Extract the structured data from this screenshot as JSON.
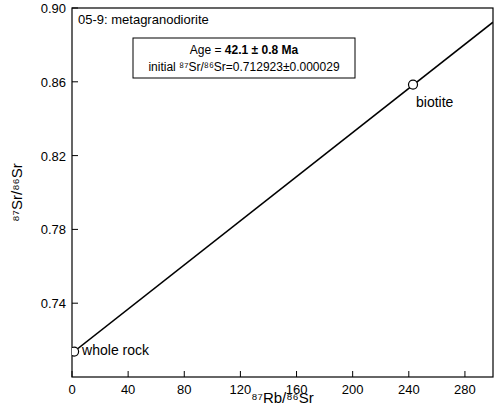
{
  "chart_data": {
    "type": "scatter",
    "title": "05-9: metagranodiorite",
    "x_label": "⁸⁷Rb/⁸⁶Sr",
    "y_label": "⁸⁷Sr/⁸⁶Sr",
    "annotations": [
      "Age = 42.1 ± 0.8 Ma",
      "initial ⁸⁷Sr/⁸⁶Sr=0.712923±0.000029"
    ],
    "series": [
      {
        "type": "line",
        "color": "#000000",
        "line_style": "solid",
        "x": [
          0,
          300
        ],
        "values": [
          0.712923,
          0.8923
        ]
      },
      {
        "type": "scatter",
        "color": "#000000",
        "marker": "circle",
        "x": [
          1.5,
          243
        ],
        "values": [
          0.7138,
          0.8585
        ],
        "labels": [
          "whole rock",
          "biotite"
        ]
      }
    ],
    "xlim": [
      0,
      300
    ],
    "xticks": [
      0,
      40,
      80,
      120,
      160,
      200,
      240,
      280
    ],
    "ylim": [
      0.7,
      0.9
    ],
    "yticks": [
      0.74,
      0.78,
      0.82,
      0.86,
      {
        "value": 0.9,
        "label": "0.90"
      }
    ],
    "grid": false
  }
}
